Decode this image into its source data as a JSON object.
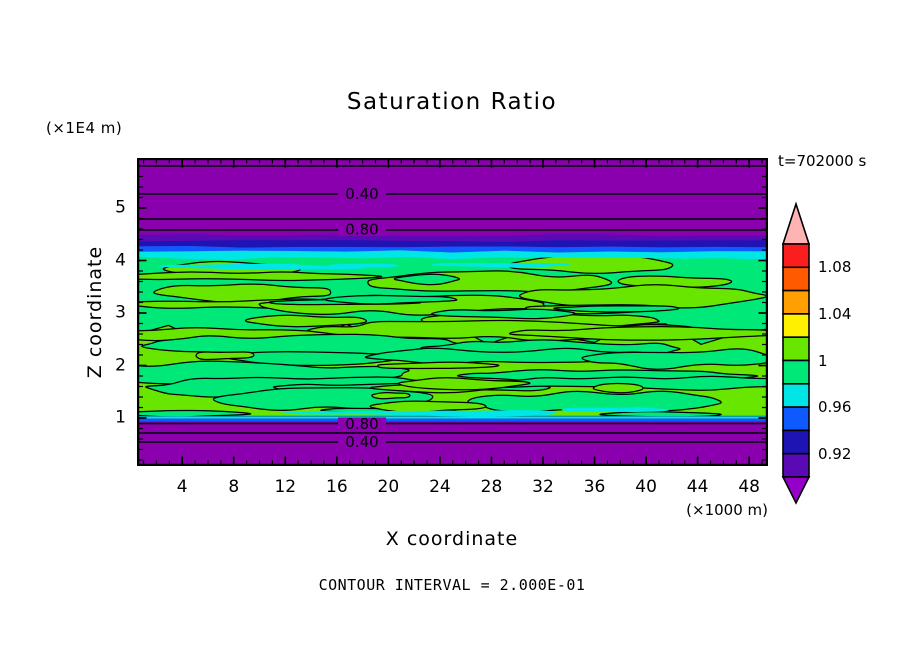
{
  "title": "Saturation Ratio",
  "annotations": {
    "time": "t=702000 s",
    "contour_interval_note": "CONTOUR INTERVAL = 2.000E-01"
  },
  "x_axis": {
    "label": "X coordinate",
    "unit": "(×1000 m)",
    "ticks": [
      "4",
      "8",
      "12",
      "16",
      "20",
      "24",
      "28",
      "32",
      "36",
      "40",
      "44",
      "48"
    ]
  },
  "y_axis": {
    "label": "Z coordinate",
    "unit": "(×1E4 m)",
    "ticks": [
      "5",
      "4",
      "3",
      "2",
      "1"
    ]
  },
  "contour_line_labels": [
    "0.40",
    "0.80",
    "0.80",
    "0.40"
  ],
  "colorbar": {
    "tick_labels": [
      "1.08",
      "1.04",
      "1",
      "0.96",
      "0.92"
    ],
    "cell_colors_top_to_bottom": [
      "#FA1E1E",
      "#FF5A00",
      "#FFA000",
      "#FFF000",
      "#69E600",
      "#00E878",
      "#00E6E6",
      "#0F5AFF",
      "#1E14B4",
      "#5A0AB4"
    ],
    "over_range_color": "#FFB4B4",
    "under_range_color": "#9400C8"
  },
  "field_colors": {
    "background_purple": "#8A00AF",
    "band_indigo": "#5A0AB4",
    "band_navy": "#1E14B4",
    "band_blue": "#0F5AFF",
    "band_cyan": "#00E6E6",
    "green_spring": "#00E878",
    "green_yellow": "#69E600",
    "line_black": "#000000"
  },
  "chart_data": {
    "type": "heatmap",
    "subtype": "filled_contour_xz_cross_section",
    "title": "Saturation Ratio",
    "xlabel": "X coordinate",
    "x_unit": "×1000 m",
    "x_tick_values": [
      4,
      8,
      12,
      16,
      20,
      24,
      28,
      32,
      36,
      40,
      44,
      48
    ],
    "x_range": [
      0.5,
      49.5
    ],
    "ylabel": "Z coordinate",
    "y_unit": "×1E4 m",
    "y_tick_values": [
      1,
      2,
      3,
      4,
      5
    ],
    "y_range": [
      0.1,
      5.95
    ],
    "time_seconds": 702000,
    "contour_interval": 0.2,
    "labeled_line_contours": [
      0.4,
      0.8
    ],
    "colorbar_tick_values": [
      1.08,
      1.04,
      1,
      0.96,
      0.92
    ],
    "fill_levels": [
      0.9,
      0.92,
      0.94,
      0.96,
      0.98,
      1.0,
      1.02,
      1.04,
      1.06,
      1.08,
      1.1
    ],
    "legend_position": "right",
    "grid": false,
    "mean_vertical_profile": [
      {
        "z": 5.9,
        "saturation": 0.15
      },
      {
        "z": 5.8,
        "saturation": 0.2
      },
      {
        "z": 5.25,
        "saturation": 0.4
      },
      {
        "z": 4.8,
        "saturation": 0.6
      },
      {
        "z": 4.6,
        "saturation": 0.8
      },
      {
        "z": 4.45,
        "saturation": 0.9
      },
      {
        "z": 4.1,
        "saturation": 0.96
      },
      {
        "z": 3.9,
        "saturation": 0.98
      },
      {
        "z": 2.5,
        "saturation": 1.0
      },
      {
        "z": 1.2,
        "saturation": 0.98
      },
      {
        "z": 1.0,
        "saturation": 0.9
      },
      {
        "z": 0.9,
        "saturation": 0.8
      },
      {
        "z": 0.72,
        "saturation": 0.6
      },
      {
        "z": 0.55,
        "saturation": 0.4
      }
    ],
    "description": "Horizontally stratified saturation-ratio field: strongly subsaturated (S<0.9, purple) above z≈4.5×1E4 m and below z≈1.0×1E4 m; thin indigo/navy/blue/cyan transition bands (S 0.90–0.98); turbulent near-saturated cloud layer (S≈0.96–1.02, interleaved green filaments with black 0.98/1.00 contour outlines) between z≈1 and z≈4.1."
  }
}
